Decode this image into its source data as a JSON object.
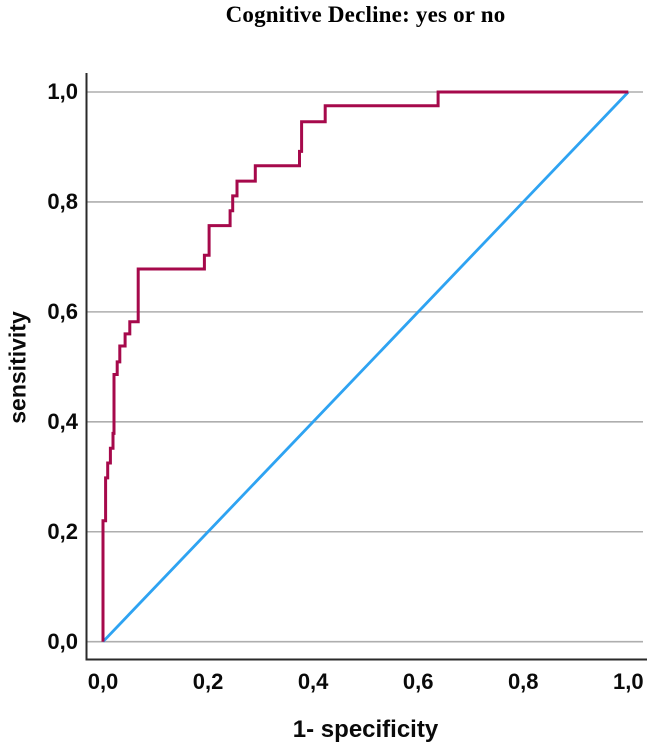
{
  "title": "Cognitive Decline: yes or no",
  "colors": {
    "roc_curve": "#a6094b",
    "reference_line": "#2ea3f2",
    "gridline": "#aeaeae",
    "axis_line": "#2a2a2a",
    "text": "#0a0a0a",
    "background": "#ffffff"
  },
  "chart_data": {
    "type": "line",
    "subtype": "roc-curve",
    "title": "Cognitive Decline: yes or no",
    "xlabel": "1- specificity",
    "ylabel": "sensitivity",
    "xlim": [
      0,
      1
    ],
    "ylim": [
      0,
      1
    ],
    "grid": "horizontal-only",
    "legend": "none",
    "x_ticks": {
      "values": [
        0,
        0.2,
        0.4,
        0.6,
        0.8,
        1.0
      ],
      "labels": [
        "0,0",
        "0,2",
        "0,4",
        "0,6",
        "0,8",
        "1,0"
      ]
    },
    "y_ticks": {
      "values": [
        0,
        0.2,
        0.4,
        0.6,
        0.8,
        1.0
      ],
      "labels": [
        "0,0",
        "0,2",
        "0,4",
        "0,6",
        "0,8",
        "1,0"
      ]
    },
    "series": [
      {
        "name": "ROC curve",
        "color_key": "roc_curve",
        "stroke_width": 3,
        "step": true,
        "points": [
          [
            0.0,
            0.0
          ],
          [
            0.0,
            0.22
          ],
          [
            0.005,
            0.22
          ],
          [
            0.005,
            0.298
          ],
          [
            0.009,
            0.298
          ],
          [
            0.009,
            0.325
          ],
          [
            0.014,
            0.325
          ],
          [
            0.014,
            0.352
          ],
          [
            0.019,
            0.352
          ],
          [
            0.019,
            0.379
          ],
          [
            0.021,
            0.379
          ],
          [
            0.021,
            0.486
          ],
          [
            0.027,
            0.486
          ],
          [
            0.027,
            0.509
          ],
          [
            0.032,
            0.509
          ],
          [
            0.032,
            0.538
          ],
          [
            0.042,
            0.538
          ],
          [
            0.042,
            0.56
          ],
          [
            0.051,
            0.56
          ],
          [
            0.051,
            0.582
          ],
          [
            0.067,
            0.582
          ],
          [
            0.067,
            0.678
          ],
          [
            0.193,
            0.678
          ],
          [
            0.193,
            0.703
          ],
          [
            0.202,
            0.703
          ],
          [
            0.202,
            0.757
          ],
          [
            0.242,
            0.757
          ],
          [
            0.242,
            0.784
          ],
          [
            0.247,
            0.784
          ],
          [
            0.247,
            0.811
          ],
          [
            0.255,
            0.811
          ],
          [
            0.255,
            0.838
          ],
          [
            0.29,
            0.838
          ],
          [
            0.29,
            0.866
          ],
          [
            0.374,
            0.866
          ],
          [
            0.374,
            0.892
          ],
          [
            0.378,
            0.892
          ],
          [
            0.378,
            0.946
          ],
          [
            0.423,
            0.946
          ],
          [
            0.423,
            0.975
          ],
          [
            0.638,
            0.975
          ],
          [
            0.638,
            1.0
          ],
          [
            1.0,
            1.0
          ]
        ]
      },
      {
        "name": "Reference line",
        "color_key": "reference_line",
        "stroke_width": 2.8,
        "step": false,
        "points": [
          [
            0,
            0
          ],
          [
            1,
            1
          ]
        ]
      }
    ]
  }
}
